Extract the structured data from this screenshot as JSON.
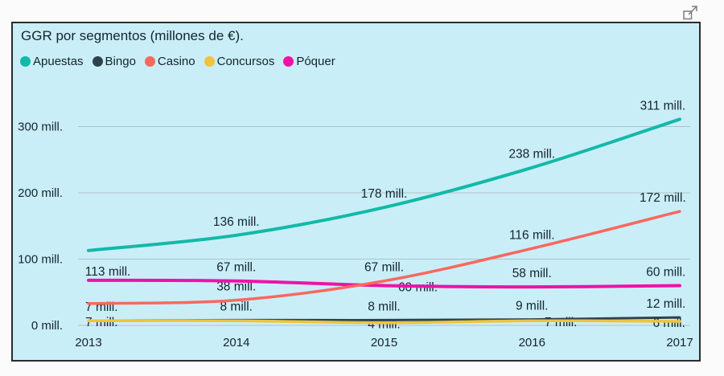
{
  "page": {
    "background": "#fbfbfb"
  },
  "header": {
    "focus_icon_name": "focus-mode-expand-icon"
  },
  "chart": {
    "panel_bg": "#c9eef8",
    "panel_border": "#2c2c2c",
    "text_color": "#15242c",
    "grid_color": "#b3c2c7"
  },
  "chart_data": {
    "type": "line",
    "title": "GGR por segmentos (millones de €).",
    "x": [
      "2013",
      "2014",
      "2015",
      "2016",
      "2017"
    ],
    "ylim": [
      0,
      340
    ],
    "grid": true,
    "legend_position": "top-left",
    "yticks": [
      {
        "value": 0,
        "label": "0 mill."
      },
      {
        "value": 100,
        "label": "100 mill."
      },
      {
        "value": 200,
        "label": "200 mill."
      },
      {
        "value": 300,
        "label": "300 mill."
      }
    ],
    "series": [
      {
        "id": "apuestas",
        "name": "Apuestas",
        "color": "#12b9a7",
        "width": 4,
        "values": [
          113,
          136,
          178,
          238,
          311
        ],
        "labels": [
          "113 mill.",
          "136 mill.",
          "178 mill.",
          "238 mill.",
          "311 mill."
        ],
        "label_pos": [
          "below",
          "above",
          "above",
          "above",
          "above"
        ],
        "label_dx": [
          0,
          0,
          0,
          0,
          0
        ]
      },
      {
        "id": "bingo",
        "name": "Bingo",
        "color": "#2f424a",
        "width": 3,
        "values": [
          7,
          8,
          8,
          9,
          12
        ],
        "labels": [
          "7 mill.",
          "8 mill.",
          "8 mill.",
          "9 mill.",
          "12 mill."
        ],
        "label_pos": [
          "above",
          "above",
          "above",
          "above",
          "above"
        ],
        "label_dx": [
          0,
          0,
          0,
          0,
          0
        ]
      },
      {
        "id": "casino",
        "name": "Casino",
        "color": "#f8685e",
        "width": 3.5,
        "values": [
          33,
          38,
          67,
          116,
          172
        ],
        "labels": [
          "",
          "38 mill.",
          "67 mill.",
          "116 mill.",
          "172 mill."
        ],
        "label_pos": [
          "",
          "above",
          "above",
          "above",
          "above"
        ],
        "label_dx": [
          0,
          0,
          0,
          0,
          0
        ]
      },
      {
        "id": "concursos",
        "name": "Concursos",
        "color": "#eec33e",
        "width": 3.5,
        "values": [
          7,
          7,
          4,
          7,
          6
        ],
        "labels": [
          "7 mill.",
          "",
          "4 mill.",
          "7 mill.",
          "6 mill."
        ],
        "label_pos": [
          "on",
          "",
          "on",
          "on",
          "on"
        ],
        "label_dx": [
          0,
          0,
          0,
          36,
          0
        ]
      },
      {
        "id": "poquer",
        "name": "Póquer",
        "color": "#ef12a7",
        "width": 4,
        "values": [
          68,
          67,
          60,
          58,
          60
        ],
        "labels": [
          "",
          "67 mill.",
          "60 mill.",
          "58 mill.",
          "60 mill."
        ],
        "label_pos": [
          "",
          "above",
          "on",
          "above",
          "above"
        ],
        "label_dx": [
          0,
          0,
          42,
          0,
          0
        ]
      }
    ]
  }
}
